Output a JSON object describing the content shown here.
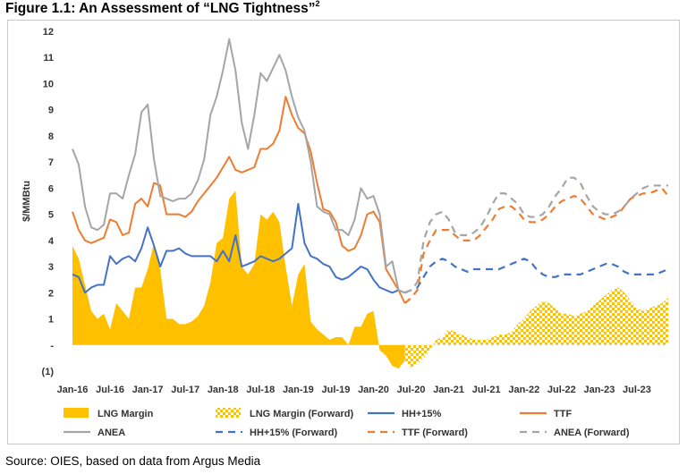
{
  "figure": {
    "title": "Figure 1.1: An Assessment of “LNG Tightness”",
    "footnote_mark": "2",
    "source": "Source: OIES, based on data from Argus Media"
  },
  "colors": {
    "margin": "#FFC000",
    "hh": "#4472C4",
    "ttf": "#ED7D31",
    "anea": "#A5A5A5",
    "axis_text": "#333333",
    "frame": "#C8C8C8"
  },
  "chart_data": {
    "type": "area",
    "title": "An Assessment of “LNG Tightness”",
    "ylabel": "$/MMBtu",
    "xlabel": "",
    "ylim": [
      -1,
      12
    ],
    "y_ticks": [
      -1,
      0,
      1,
      2,
      3,
      4,
      5,
      6,
      7,
      8,
      9,
      10,
      11,
      12
    ],
    "y_tick_labels": [
      "(1)",
      "-",
      "1",
      "2",
      "3",
      "4",
      "5",
      "6",
      "7",
      "8",
      "9",
      "10",
      "11",
      "12"
    ],
    "x_ticks": [
      0,
      6,
      12,
      18,
      24,
      30,
      36,
      42,
      48,
      54,
      60,
      66,
      72,
      78,
      84,
      90
    ],
    "x_tick_labels": [
      "Jan-16",
      "Jul-16",
      "Jan-17",
      "Jul-17",
      "Jan-18",
      "Jul-18",
      "Jan-19",
      "Jul-19",
      "Jan-20",
      "Jul-20",
      "Jan-21",
      "Jul-21",
      "Jan-22",
      "Jul-22",
      "Jan-23",
      "Jul-23"
    ],
    "x_range": [
      0,
      95
    ],
    "x_unit": "months since Jan-16",
    "historical_x": [
      0,
      53
    ],
    "forward_x": [
      53,
      95
    ],
    "series": [
      {
        "name": "LNG Margin",
        "kind": "area",
        "segment": "historical",
        "color": "#FFC000",
        "values": [
          3.8,
          3.3,
          2.3,
          1.3,
          1.0,
          1.2,
          0.6,
          1.6,
          1.3,
          1.0,
          2.2,
          2.2,
          2.9,
          3.9,
          2.9,
          1.0,
          1.0,
          0.8,
          0.8,
          0.9,
          1.1,
          1.5,
          2.4,
          3.9,
          4.1,
          5.6,
          5.9,
          3.0,
          2.7,
          3.1,
          5.0,
          4.8,
          5.1,
          4.7,
          3.0,
          1.5,
          2.7,
          3.1,
          0.9,
          0.6,
          0.4,
          0.2,
          0.3,
          0.3,
          0.0,
          0.7,
          0.7,
          1.2,
          1.3,
          -0.2,
          -0.4,
          -0.8,
          -0.9,
          -0.6
        ]
      },
      {
        "name": "LNG Margin (Forward)",
        "kind": "area",
        "segment": "forward",
        "color": "#FFC000",
        "values": [
          -0.6,
          -0.9,
          -0.7,
          -0.5,
          -0.2,
          0.2,
          0.3,
          0.6,
          0.5,
          0.4,
          0.3,
          0.2,
          0.2,
          0.2,
          0.3,
          0.4,
          0.4,
          0.5,
          0.8,
          1.0,
          1.3,
          1.5,
          1.7,
          1.6,
          1.4,
          1.2,
          1.2,
          1.1,
          1.2,
          1.3,
          1.5,
          1.7,
          1.9,
          2.1,
          2.2,
          2.0,
          1.7,
          1.4,
          1.3,
          1.4,
          1.5,
          1.6,
          1.8
        ]
      },
      {
        "name": "HH+15%",
        "kind": "line",
        "segment": "historical",
        "color": "#4472C4",
        "values": [
          2.7,
          2.6,
          2.0,
          2.2,
          2.3,
          2.3,
          3.4,
          3.1,
          3.3,
          3.4,
          3.2,
          3.7,
          4.5,
          3.8,
          3.0,
          3.6,
          3.6,
          3.7,
          3.5,
          3.4,
          3.4,
          3.4,
          3.4,
          3.2,
          3.6,
          3.2,
          4.2,
          3.0,
          3.1,
          3.2,
          3.4,
          3.3,
          3.2,
          3.3,
          3.5,
          3.7,
          5.4,
          3.9,
          3.4,
          3.3,
          3.1,
          3.0,
          2.6,
          2.5,
          2.6,
          2.8,
          3.0,
          2.9,
          2.5,
          2.2,
          2.1,
          2.0,
          2.1,
          2.0
        ]
      },
      {
        "name": "TTF",
        "kind": "line",
        "segment": "historical",
        "color": "#ED7D31",
        "values": [
          5.1,
          4.4,
          4.0,
          3.9,
          4.0,
          4.1,
          4.8,
          4.7,
          4.2,
          4.3,
          5.4,
          5.6,
          5.3,
          6.2,
          6.1,
          5.0,
          5.0,
          5.0,
          4.9,
          5.1,
          5.5,
          5.8,
          6.1,
          6.4,
          6.8,
          7.2,
          6.7,
          6.6,
          6.7,
          6.8,
          7.5,
          7.5,
          7.7,
          8.2,
          9.5,
          8.8,
          8.3,
          8.1,
          7.4,
          6.2,
          5.2,
          5.1,
          4.7,
          3.8,
          3.6,
          3.7,
          4.2,
          5.0,
          5.1,
          4.7,
          2.9,
          2.5,
          2.1,
          1.6
        ]
      },
      {
        "name": "ANEA",
        "kind": "line",
        "segment": "historical",
        "color": "#A5A5A5",
        "values": [
          7.5,
          6.9,
          5.3,
          4.5,
          4.4,
          4.6,
          5.8,
          5.8,
          5.6,
          6.5,
          7.3,
          8.9,
          9.2,
          7.1,
          5.7,
          5.6,
          5.5,
          5.6,
          5.6,
          5.8,
          6.3,
          7.1,
          8.8,
          9.5,
          10.5,
          11.7,
          10.5,
          8.5,
          7.5,
          8.8,
          10.4,
          10.1,
          10.6,
          11.1,
          10.5,
          9.5,
          8.7,
          8.2,
          7.0,
          5.3,
          5.1,
          5.0,
          4.4,
          4.4,
          4.2,
          4.8,
          6.0,
          5.6,
          5.7,
          5.0,
          3.0,
          3.2,
          2.1,
          2.0
        ]
      },
      {
        "name": "HH+15% (Forward)",
        "kind": "line",
        "segment": "forward",
        "color": "#4472C4",
        "dashed": true,
        "values": [
          2.0,
          2.1,
          2.2,
          2.6,
          3.0,
          3.2,
          3.3,
          3.2,
          3.0,
          2.9,
          2.8,
          2.9,
          2.9,
          2.9,
          2.9,
          2.9,
          3.0,
          3.1,
          3.2,
          3.3,
          3.2,
          2.9,
          2.7,
          2.6,
          2.6,
          2.7,
          2.7,
          2.7,
          2.7,
          2.8,
          2.9,
          3.0,
          3.1,
          3.1,
          3.0,
          2.8,
          2.7,
          2.7,
          2.7,
          2.7,
          2.7,
          2.8,
          2.9
        ]
      },
      {
        "name": "TTF (Forward)",
        "kind": "line",
        "segment": "forward",
        "color": "#ED7D31",
        "dashed": true,
        "values": [
          1.6,
          1.8,
          2.1,
          3.5,
          4.0,
          4.4,
          4.4,
          4.4,
          4.2,
          4.0,
          4.0,
          4.0,
          4.2,
          4.5,
          4.8,
          5.2,
          5.3,
          5.3,
          5.1,
          4.8,
          4.7,
          4.7,
          4.8,
          5.0,
          5.3,
          5.5,
          5.6,
          5.7,
          5.6,
          5.3,
          5.0,
          4.9,
          4.8,
          4.9,
          5.0,
          5.3,
          5.6,
          5.7,
          5.8,
          5.8,
          5.9,
          6.0,
          5.7
        ]
      },
      {
        "name": "ANEA (Forward)",
        "kind": "line",
        "segment": "forward",
        "color": "#A5A5A5",
        "dashed": true,
        "values": [
          2.0,
          2.1,
          2.4,
          4.0,
          4.7,
          5.0,
          5.1,
          4.8,
          4.3,
          4.2,
          4.2,
          4.3,
          4.5,
          4.9,
          5.4,
          5.8,
          5.8,
          5.6,
          5.4,
          5.0,
          4.9,
          4.9,
          5.0,
          5.3,
          5.7,
          6.0,
          6.4,
          6.4,
          6.2,
          5.7,
          5.3,
          5.1,
          5.0,
          5.0,
          5.1,
          5.3,
          5.6,
          5.8,
          6.0,
          6.1,
          6.1,
          6.1,
          6.1
        ]
      }
    ],
    "legend": {
      "placement": "bottom",
      "entries": [
        {
          "label": "LNG Margin",
          "symbol": "area-solid",
          "color": "#FFC000"
        },
        {
          "label": "LNG Margin (Forward)",
          "symbol": "area-checker",
          "color": "#FFC000"
        },
        {
          "label": "HH+15%",
          "symbol": "line-solid",
          "color": "#4472C4"
        },
        {
          "label": "TTF",
          "symbol": "line-solid",
          "color": "#ED7D31"
        },
        {
          "label": "ANEA",
          "symbol": "line-solid",
          "color": "#A5A5A5"
        },
        {
          "label": "HH+15% (Forward)",
          "symbol": "line-dashed",
          "color": "#4472C4"
        },
        {
          "label": "TTF (Forward)",
          "symbol": "line-dashed",
          "color": "#ED7D31"
        },
        {
          "label": "ANEA (Forward)",
          "symbol": "line-dashed",
          "color": "#A5A5A5"
        }
      ]
    },
    "grid": false
  }
}
